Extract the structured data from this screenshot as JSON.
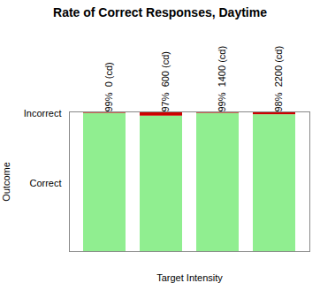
{
  "chart_data": {
    "type": "bar",
    "title": "Rate of Correct Responses, Daytime",
    "xlabel": "Target Intensity",
    "ylabel": "Outcome",
    "stacked": true,
    "categories": [
      null,
      null,
      null,
      null
    ],
    "series": [
      {
        "color": "#90EE90",
        "values": [
          0.99,
          0.97,
          0.99,
          0.98
        ]
      },
      {
        "color": "#CC0000",
        "values": [
          0.01,
          0.03,
          0.01,
          0.02
        ]
      }
    ],
    "ylim": [
      0,
      1.0
    ],
    "yticks": [
      {
        "value": 0.485,
        "label": "Correct"
      },
      {
        "value": 0.985,
        "label": "Incorrect"
      }
    ],
    "annotations": [
      "99%  0 (cd)",
      "97%  600 (cd)",
      "99%  1400 (cd)",
      "98%  2200 (cd)"
    ],
    "tick_labels": "y",
    "grid": false
  }
}
